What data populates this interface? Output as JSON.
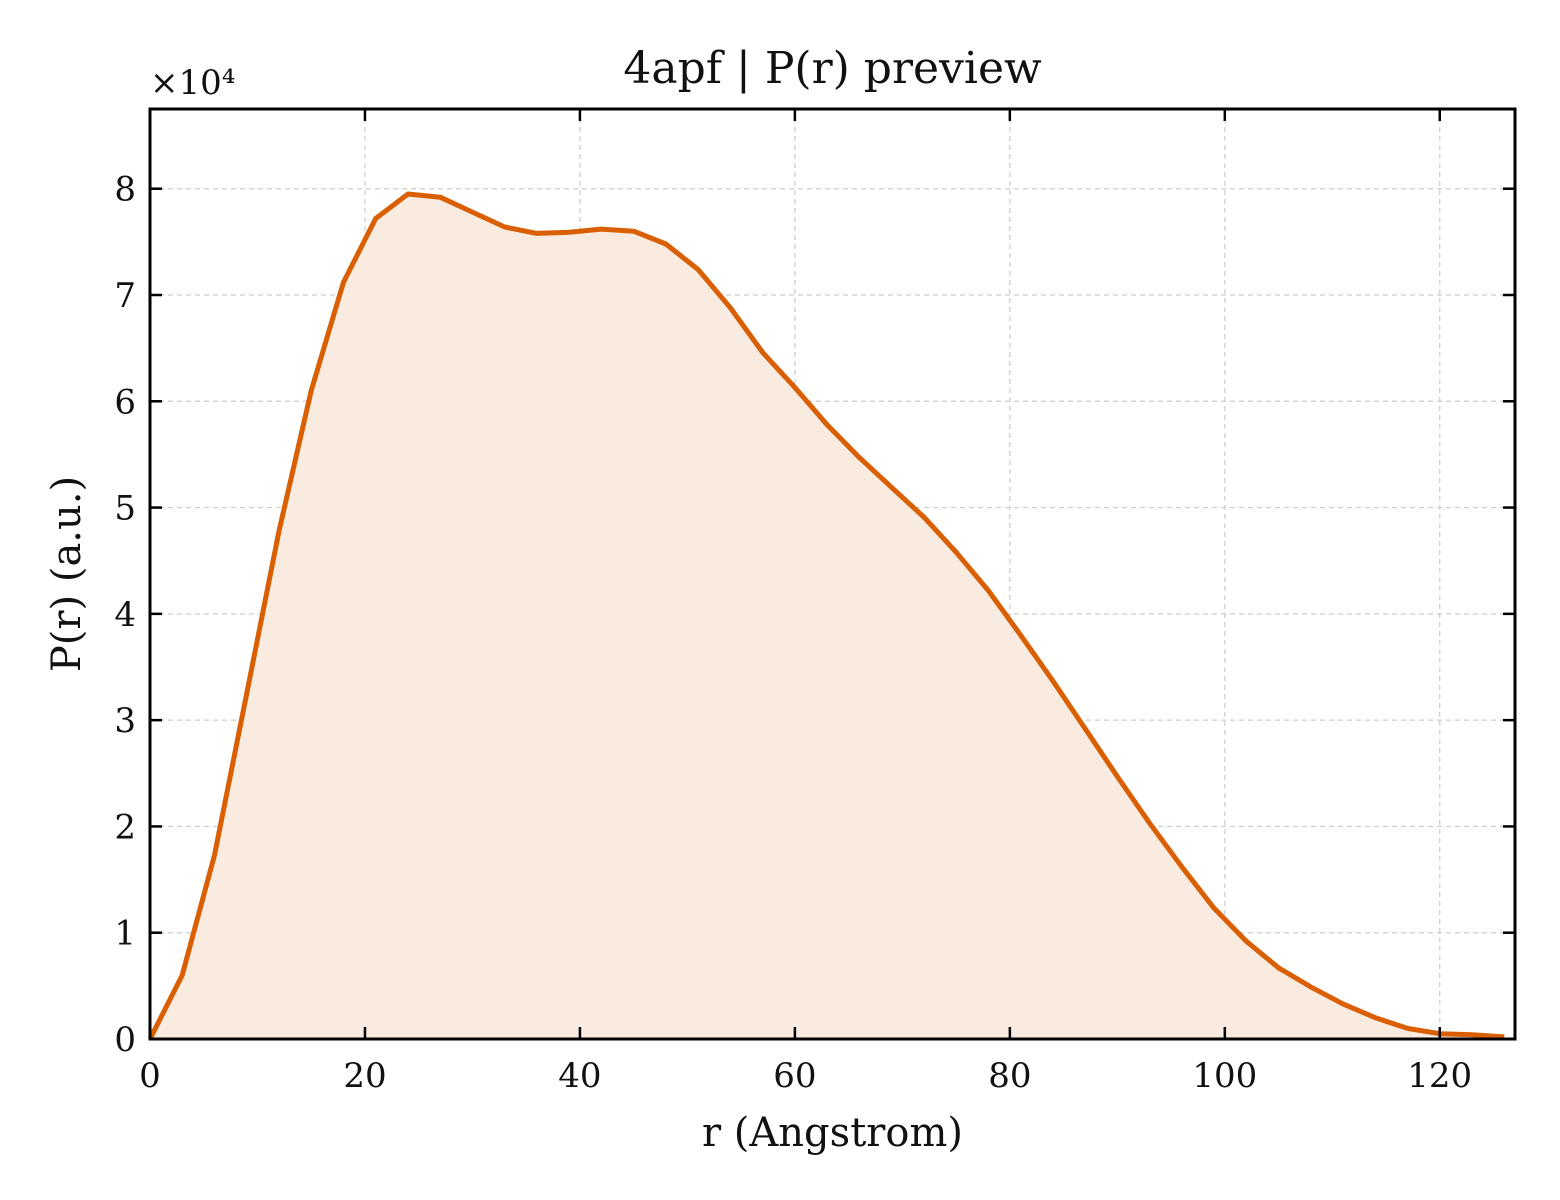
{
  "chart_data": {
    "type": "area",
    "title": "4apf | P(r) preview",
    "xlabel": "r (Angstrom)",
    "ylabel": "P(r) (a.u.)",
    "y_multiplier_label": "×10⁴",
    "xlim": [
      0,
      127
    ],
    "ylim": [
      0,
      8.75
    ],
    "x_ticks": [
      0,
      20,
      40,
      60,
      80,
      100,
      120
    ],
    "x_tick_labels": [
      "0",
      "20",
      "40",
      "60",
      "80",
      "100",
      "120"
    ],
    "y_ticks": [
      0,
      1,
      2,
      3,
      4,
      5,
      6,
      7,
      8
    ],
    "y_tick_labels": [
      "0",
      "1",
      "2",
      "3",
      "4",
      "5",
      "6",
      "7",
      "8"
    ],
    "grid": true,
    "legend": false,
    "colors": {
      "line": "#d95f02",
      "fill": "#f9ebe0",
      "grid": "#cccccc",
      "axes": "#000000"
    },
    "series": [
      {
        "x": [
          0,
          3,
          6,
          9,
          12,
          15,
          18,
          21,
          24,
          27,
          30,
          33,
          36,
          39,
          42,
          45,
          48,
          51,
          54,
          57,
          60,
          63,
          66,
          69,
          72,
          75,
          78,
          81,
          84,
          87,
          90,
          93,
          96,
          99,
          102,
          105,
          108,
          111,
          114,
          117,
          120,
          123,
          126
        ],
        "values": [
          0,
          0.6,
          1.73,
          3.25,
          4.78,
          6.1,
          7.12,
          7.72,
          7.95,
          7.92,
          7.78,
          7.64,
          7.58,
          7.59,
          7.62,
          7.6,
          7.48,
          7.24,
          6.88,
          6.46,
          6.13,
          5.78,
          5.47,
          5.19,
          4.91,
          4.58,
          4.22,
          3.8,
          3.37,
          2.92,
          2.47,
          2.03,
          1.62,
          1.23,
          0.92,
          0.67,
          0.49,
          0.33,
          0.2,
          0.1,
          0.05,
          0.04,
          0.02
        ]
      }
    ]
  }
}
